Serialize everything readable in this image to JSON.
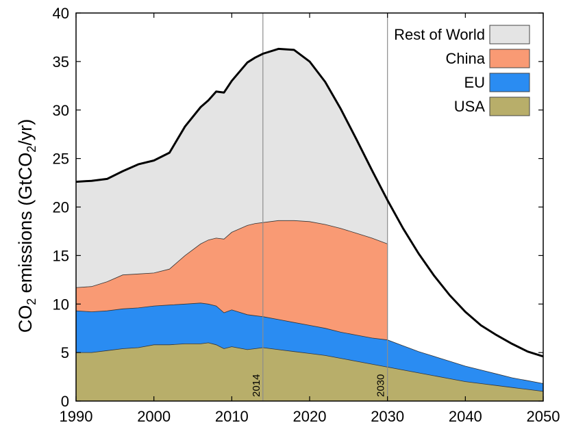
{
  "chart_data": {
    "type": "area",
    "title": "",
    "xlabel": "",
    "ylabel": {
      "prefix": "CO",
      "sub": "2",
      "middle": " emissions (GtCO",
      "sub2": "2",
      "suffix": "/yr)"
    },
    "xlim": [
      1990,
      2050
    ],
    "ylim": [
      0,
      40
    ],
    "x_ticks": [
      1990,
      2000,
      2010,
      2020,
      2030,
      2040,
      2050
    ],
    "y_ticks": [
      0,
      5,
      10,
      15,
      20,
      25,
      30,
      35,
      40
    ],
    "grid": false,
    "legend_position": "top-right",
    "reference_lines": [
      {
        "x": 2014,
        "label": "2014"
      },
      {
        "x": 2030,
        "label": "2030"
      }
    ],
    "series": [
      {
        "name": "USA",
        "color": "#b8ae6a",
        "x": [
          1990,
          1992,
          1994,
          1996,
          1998,
          2000,
          2002,
          2004,
          2006,
          2007,
          2008,
          2009,
          2010,
          2012,
          2013,
          2014,
          2016,
          2018,
          2020,
          2022,
          2024,
          2026,
          2028,
          2030,
          2032,
          2034,
          2036,
          2038,
          2040,
          2042,
          2044,
          2046,
          2048,
          2050
        ],
        "y": [
          5.0,
          5.0,
          5.2,
          5.4,
          5.5,
          5.8,
          5.8,
          5.9,
          5.9,
          6.0,
          5.8,
          5.4,
          5.6,
          5.3,
          5.4,
          5.5,
          5.3,
          5.1,
          4.9,
          4.7,
          4.4,
          4.1,
          3.8,
          3.5,
          3.2,
          2.9,
          2.6,
          2.3,
          2.0,
          1.8,
          1.6,
          1.4,
          1.2,
          1.0
        ]
      },
      {
        "name": "EU",
        "color": "#2a8cf2",
        "x": [
          1990,
          1992,
          1994,
          1996,
          1998,
          2000,
          2002,
          2004,
          2006,
          2007,
          2008,
          2009,
          2010,
          2012,
          2013,
          2014,
          2016,
          2018,
          2020,
          2022,
          2024,
          2026,
          2028,
          2030,
          2032,
          2034,
          2036,
          2038,
          2040,
          2042,
          2044,
          2046,
          2048,
          2050
        ],
        "y": [
          9.3,
          9.2,
          9.3,
          9.5,
          9.6,
          9.8,
          9.9,
          10.0,
          10.1,
          10.0,
          9.8,
          9.1,
          9.4,
          8.9,
          8.8,
          8.7,
          8.4,
          8.1,
          7.8,
          7.5,
          7.1,
          6.8,
          6.5,
          6.3,
          5.7,
          5.1,
          4.6,
          4.1,
          3.6,
          3.2,
          2.8,
          2.4,
          2.1,
          1.8
        ]
      },
      {
        "name": "China",
        "color": "#f99a74",
        "x": [
          1990,
          1992,
          1994,
          1996,
          1998,
          2000,
          2002,
          2004,
          2006,
          2007,
          2008,
          2009,
          2010,
          2012,
          2013,
          2014,
          2016,
          2018,
          2020,
          2022,
          2024,
          2026,
          2028,
          2030
        ],
        "y": [
          11.7,
          11.8,
          12.3,
          13.0,
          13.1,
          13.2,
          13.6,
          15.0,
          16.2,
          16.6,
          16.8,
          16.7,
          17.4,
          18.1,
          18.3,
          18.4,
          18.6,
          18.6,
          18.5,
          18.2,
          17.8,
          17.3,
          16.8,
          16.2
        ]
      },
      {
        "name": "Rest of World",
        "color": "#e4e4e4",
        "x": [
          1990,
          1992,
          1994,
          1996,
          1998,
          2000,
          2002,
          2004,
          2006,
          2007,
          2008,
          2009,
          2010,
          2012,
          2013,
          2014,
          2016,
          2018,
          2020,
          2022,
          2024,
          2026,
          2028,
          2030,
          2032,
          2034,
          2036,
          2038,
          2040,
          2042,
          2044,
          2046,
          2048,
          2050
        ],
        "y": [
          22.6,
          22.7,
          22.9,
          23.7,
          24.4,
          24.8,
          25.6,
          28.3,
          30.3,
          31.0,
          31.9,
          31.8,
          33.0,
          34.9,
          35.4,
          35.8,
          36.3,
          36.2,
          35.0,
          32.9,
          30.1,
          27.0,
          23.8,
          20.7,
          17.8,
          15.2,
          12.9,
          10.9,
          9.2,
          7.8,
          6.8,
          5.9,
          5.1,
          4.6
        ]
      }
    ]
  }
}
